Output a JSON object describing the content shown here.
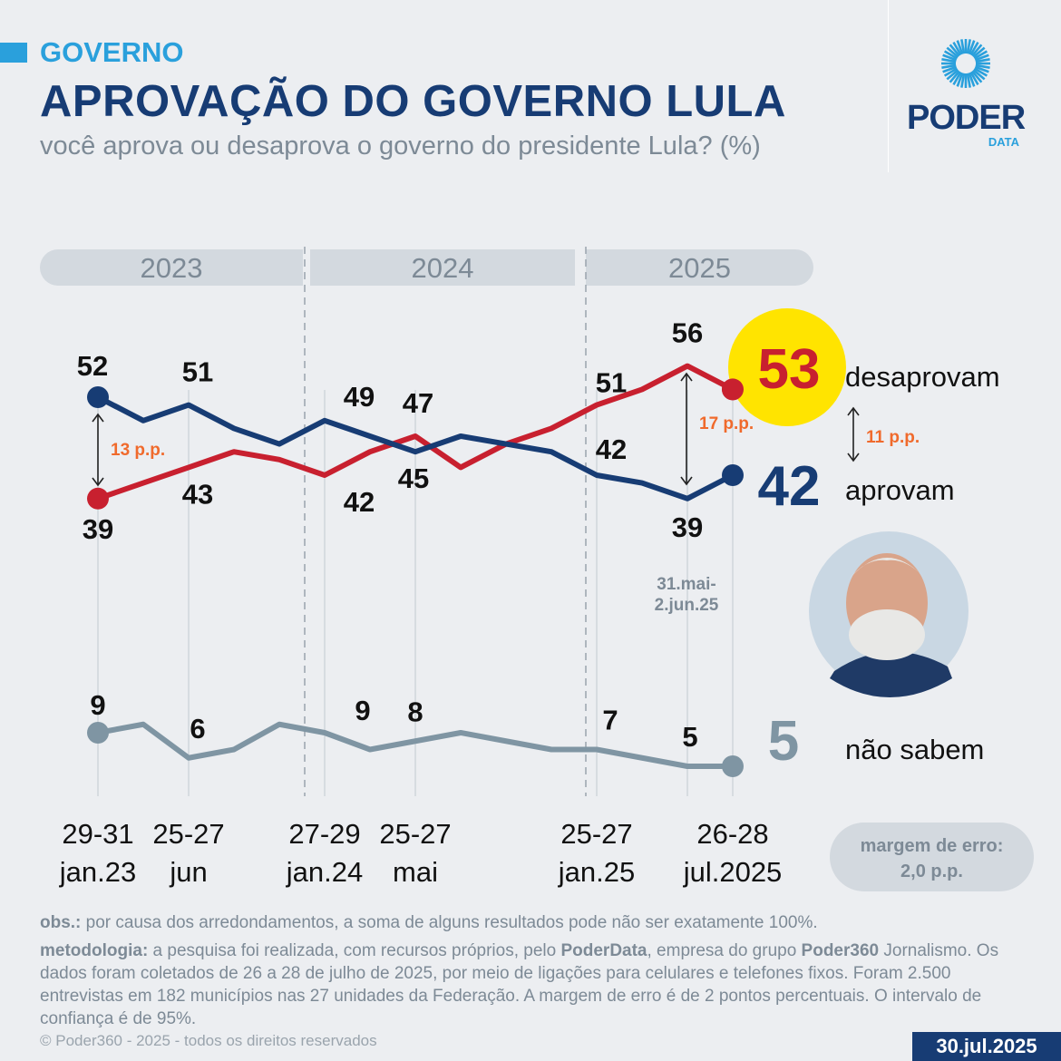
{
  "header": {
    "section": "GOVERNO",
    "title": "APROVAÇÃO DO GOVERNO LULA",
    "subtitle": "você aprova ou desaprova o governo do presidente Lula? (%)",
    "logo_word": "PODER",
    "logo_sub": "DATA"
  },
  "colors": {
    "approve": "#173c74",
    "disapprove": "#c8202f",
    "undecided": "#7f95a3",
    "highlight": "#ffe400",
    "gap": "#f06a2c",
    "accent": "#2aa0dc"
  },
  "chart_data": {
    "type": "line",
    "year_bands": [
      "2023",
      "2024",
      "2025"
    ],
    "categories": [
      "29-31 jan.23",
      "",
      "25-27 jun",
      "",
      "",
      "27-29 jan.24",
      "",
      "25-27 mai",
      "",
      "",
      "",
      "25-27 jan.25",
      "",
      "31.mai-2.jun.25",
      "26-28 jul.2025"
    ],
    "x_labels": [
      {
        "index": 0,
        "line1": "29-31",
        "line2": "jan.23"
      },
      {
        "index": 2,
        "line1": "25-27",
        "line2": "jun"
      },
      {
        "index": 5,
        "line1": "27-29",
        "line2": "jan.24"
      },
      {
        "index": 7,
        "line1": "25-27",
        "line2": "mai"
      },
      {
        "index": 11,
        "line1": "25-27",
        "line2": "jan.25"
      },
      {
        "index": 14,
        "line1": "26-28",
        "line2": "jul.2025"
      }
    ],
    "point_note": {
      "index": 13,
      "line1": "31.mai-",
      "line2": "2.jun.25"
    },
    "series": [
      {
        "name": "desaprovam",
        "values": [
          39,
          41,
          43,
          45,
          44,
          42,
          45,
          47,
          43,
          46,
          48,
          51,
          53,
          56,
          53
        ],
        "labeled": [
          0,
          2,
          5,
          7,
          11,
          13
        ]
      },
      {
        "name": "aprovam",
        "values": [
          52,
          49,
          51,
          48,
          46,
          49,
          47,
          45,
          47,
          46,
          45,
          42,
          41,
          39,
          42
        ],
        "labeled": [
          0,
          2,
          5,
          7,
          11,
          13
        ]
      },
      {
        "name": "não sabem",
        "values": [
          9,
          10,
          6,
          7,
          10,
          9,
          7,
          8,
          9,
          8,
          7,
          7,
          6,
          5,
          5
        ],
        "labeled": [
          0,
          2,
          5,
          7,
          11,
          13
        ]
      }
    ],
    "gaps": [
      {
        "index": 0,
        "label": "13 p.p."
      },
      {
        "index": 13,
        "label": "17 p.p."
      },
      {
        "index": 14,
        "label": "11 p.p."
      }
    ],
    "final": {
      "disapprove": "53",
      "approve": "42",
      "undecided": "5"
    },
    "grid": false,
    "legend": "right end labels"
  },
  "margin_box": {
    "line1": "margem de erro:",
    "line2": "2,0 p.p."
  },
  "notes": {
    "obs_label": "obs.:",
    "obs_text": " por causa dos arredondamentos, a soma de alguns resultados pode não ser exatamente 100%.",
    "met_label": "metodologia:",
    "met_text1": " a pesquisa foi realizada, com recursos próprios, pelo ",
    "met_bold1": "PoderData",
    "met_text2": ", empresa do grupo ",
    "met_bold2": "Poder360",
    "met_text3": " Jornalismo. Os dados foram coletados de 26 a 28 de julho de 2025, por meio de ligações para celulares e telefones fixos. Foram 2.500 entrevistas em 182 municípios nas 27 unidades da Federação. A margem de erro é de 2 pontos percentuais. O intervalo de confiança é de 95%."
  },
  "footer": {
    "copyright": "© Poder360 - 2025 - todos os direitos reservados",
    "date": "30.jul.2025"
  }
}
